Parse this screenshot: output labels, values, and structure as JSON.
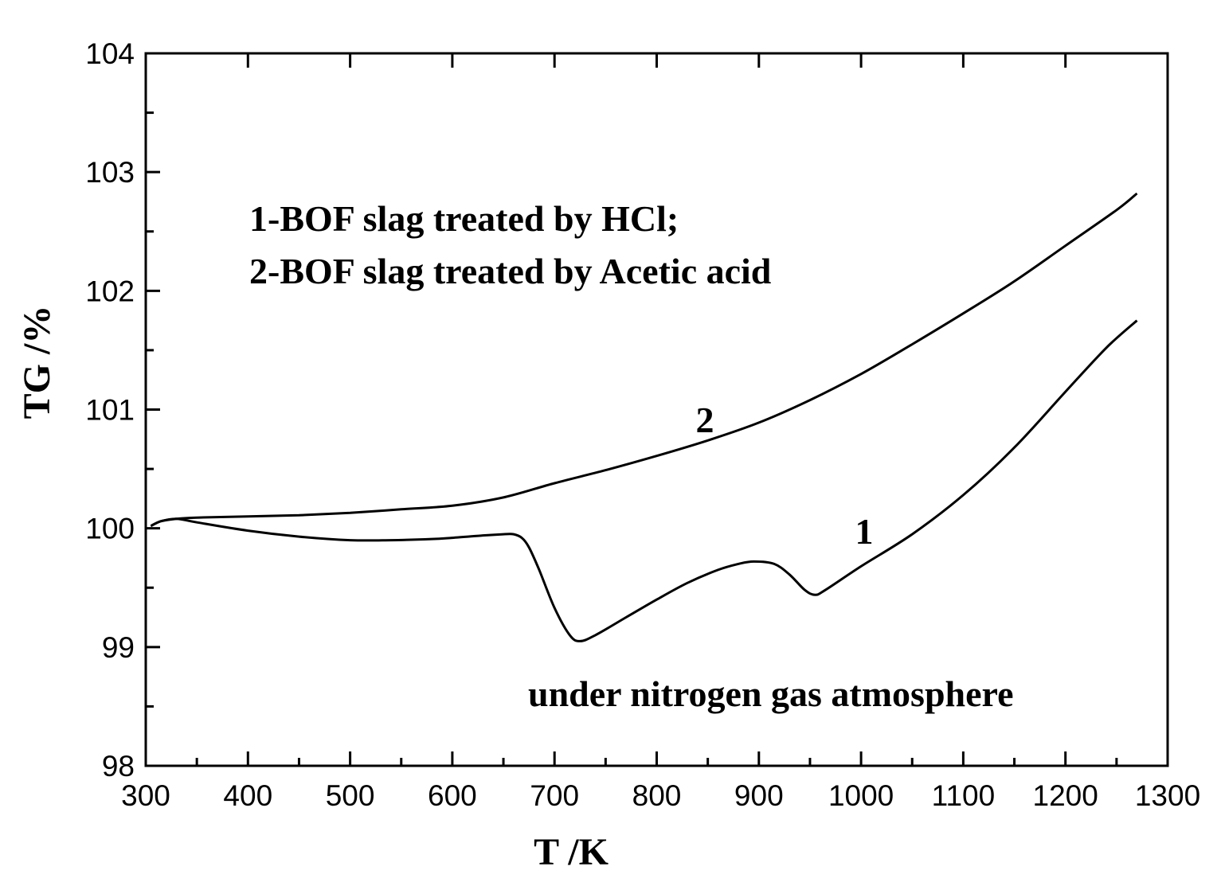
{
  "chart_data": {
    "type": "line",
    "xlabel": "T /K",
    "ylabel": "TG /%",
    "xlim": [
      300,
      1300
    ],
    "ylim": [
      98,
      104
    ],
    "x_ticks": [
      "300",
      "400",
      "500",
      "600",
      "700",
      "800",
      "900",
      "1000",
      "1100",
      "1200",
      "1300"
    ],
    "y_ticks": [
      "98",
      "99",
      "100",
      "101",
      "102",
      "103",
      "104"
    ],
    "grid": false,
    "annotations": {
      "legend_line1": "1-BOF slag treated by HCl;",
      "legend_line2": "2-BOF slag treated by Acetic acid",
      "atmosphere": "under nitrogen gas atmosphere"
    },
    "series": [
      {
        "label": "1",
        "x": [
          305,
          315,
          330,
          350,
          400,
          450,
          500,
          540,
          580,
          600,
          630,
          650,
          660,
          668,
          675,
          685,
          700,
          715,
          725,
          740,
          770,
          800,
          830,
          860,
          880,
          895,
          915,
          930,
          945,
          955,
          965,
          1000,
          1050,
          1100,
          1150,
          1200,
          1240,
          1270
        ],
        "y": [
          100.02,
          100.06,
          100.08,
          100.05,
          99.98,
          99.93,
          99.9,
          99.9,
          99.91,
          99.92,
          99.94,
          99.95,
          99.95,
          99.92,
          99.84,
          99.65,
          99.33,
          99.1,
          99.05,
          99.1,
          99.25,
          99.4,
          99.54,
          99.65,
          99.7,
          99.72,
          99.7,
          99.61,
          99.48,
          99.44,
          99.48,
          99.68,
          99.95,
          100.28,
          100.68,
          101.15,
          101.52,
          101.75
        ]
      },
      {
        "label": "2",
        "x": [
          305,
          315,
          330,
          350,
          400,
          450,
          500,
          550,
          600,
          650,
          700,
          750,
          800,
          850,
          900,
          950,
          1000,
          1050,
          1100,
          1150,
          1200,
          1250,
          1270
        ],
        "y": [
          100.02,
          100.06,
          100.08,
          100.09,
          100.1,
          100.11,
          100.13,
          100.16,
          100.19,
          100.26,
          100.38,
          100.49,
          100.61,
          100.74,
          100.89,
          101.08,
          101.3,
          101.55,
          101.81,
          102.08,
          102.38,
          102.68,
          102.82
        ]
      }
    ]
  }
}
